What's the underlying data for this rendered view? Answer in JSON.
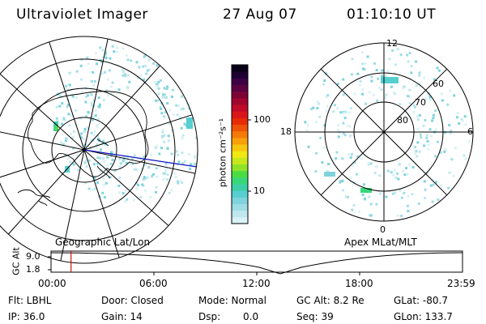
{
  "header": {
    "instrument": "Ultraviolet Imager",
    "date": "27 Aug 07",
    "time": "01:10:10 UT"
  },
  "left_panel": {
    "caption": "Geographic Lat/Lon"
  },
  "right_panel": {
    "caption": "Apex MLat/MLT",
    "mlt_labels": {
      "top": "12",
      "left": "18",
      "right": "6",
      "bottom": "0"
    },
    "lat_labels": [
      "60",
      "70",
      "80"
    ]
  },
  "colorbar": {
    "unit_label": "photon cm⁻²s⁻¹",
    "ticks": [
      "100",
      "10"
    ],
    "scale": "log",
    "colors": [
      "#d9f2f5",
      "#bfe8ee",
      "#9fdde6",
      "#7ed3dc",
      "#56cfd0",
      "#3dd0a7",
      "#38d77a",
      "#4bdc43",
      "#8fe22a",
      "#c5e81d",
      "#f1e814",
      "#f7c60f",
      "#f7a00a",
      "#f47a08",
      "#ef5107",
      "#e62b06",
      "#d9141a",
      "#c00a28",
      "#a0062e",
      "#7c0434",
      "#5c0240",
      "#3d0145",
      "#1e0033",
      "#0a0018"
    ]
  },
  "orbit_plot": {
    "ylabel": "GC Alt",
    "yticks": [
      "9.0",
      "1.8"
    ],
    "xticks": [
      "00:00",
      "06:00",
      "12:00",
      "18:00",
      "23:59"
    ],
    "marker_time": "01:10",
    "marker_color": "#d01010"
  },
  "status": {
    "flt": "Flt: LBHL",
    "door": "Door: Closed",
    "mode": "Mode: Normal",
    "gc_alt": "GC Alt: 8.2 Re",
    "glat": "GLat: -80.7",
    "ip": "IP: 36.0",
    "gain": "Gain: 14",
    "dsp_label": "Dsp:",
    "dsp_value": "0.0",
    "seq": "Seq: 39",
    "glon": "GLon: 133.7"
  }
}
